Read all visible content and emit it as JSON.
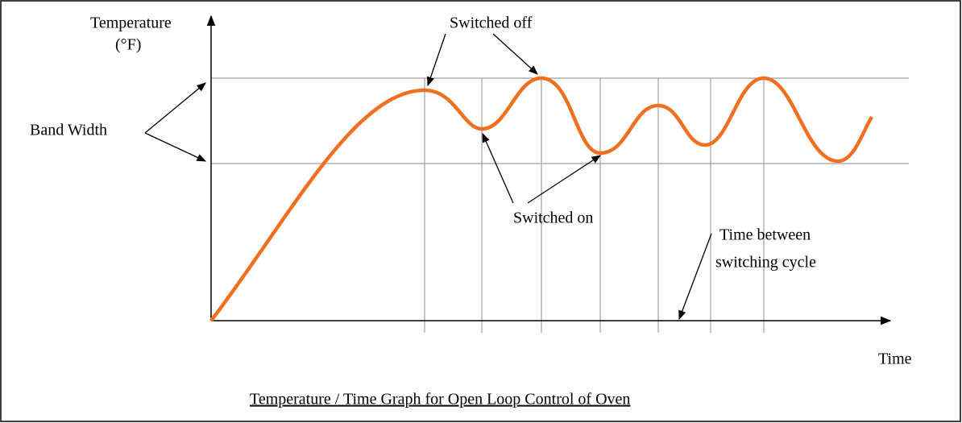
{
  "y_axis_label": "Temperature",
  "y_axis_unit": "(°F)",
  "x_axis_label": "Time",
  "annotations": {
    "band_width": "Band Width",
    "switched_off": "Switched off",
    "switched_on": "Switched on",
    "cycle_time": [
      "Time between",
      "switching cycle"
    ]
  },
  "caption": "Temperature / Time Graph for Open Loop Control of Oven"
}
